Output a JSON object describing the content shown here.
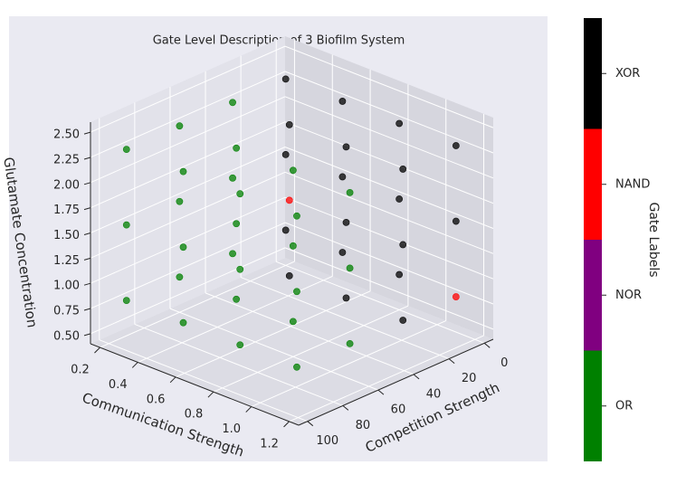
{
  "chart_data": {
    "type": "scatter3d",
    "title": "Gate Level Description of 3 Biofilm System",
    "xlabel": "Communication Strength",
    "ylabel": "Competition Strength",
    "zlabel": "Glutamate Concentration",
    "colorbar_label": "Gate Labels",
    "xlim": [
      0.15,
      1.25
    ],
    "xticks": [
      0.2,
      0.4,
      0.6,
      0.8,
      {
        "value": 1.0,
        "label": "1.0"
      },
      1.2
    ],
    "ylim": [
      -5,
      105
    ],
    "yticks": [
      0,
      20,
      40,
      60,
      80,
      100
    ],
    "zlim": [
      0.4,
      2.6
    ],
    "zticks": [
      {
        "value": 0.5,
        "label": "0.50"
      },
      0.75,
      {
        "value": 1.0,
        "label": "1.00"
      },
      1.25,
      {
        "value": 1.5,
        "label": "1.50"
      },
      1.75,
      {
        "value": 2.0,
        "label": "2.00"
      },
      2.25,
      {
        "value": 2.5,
        "label": "2.50"
      }
    ],
    "grid": true,
    "series": [
      {
        "name": "OR",
        "color": "#008000",
        "x": [
          0.2,
          0.2,
          0.2,
          0.5,
          0.5,
          0.5,
          0.8,
          0.8,
          0.8,
          1.1,
          1.1,
          1.1,
          0.2,
          0.2,
          0.2,
          0.5,
          0.5,
          0.5,
          0.8,
          0.8,
          0.8,
          1.1,
          1.1,
          1.1,
          0.2,
          0.2,
          0.2
        ],
        "y": [
          90,
          90,
          90,
          90,
          90,
          90,
          90,
          90,
          90,
          90,
          90,
          90,
          60,
          60,
          60,
          60,
          60,
          60,
          60,
          60,
          60,
          60,
          60,
          60,
          30,
          30,
          30
        ],
        "z": [
          0.75,
          1.5,
          2.25,
          0.75,
          1.5,
          2.25,
          0.75,
          1.5,
          2.25,
          0.75,
          1.5,
          2.25,
          0.75,
          1.5,
          2.25,
          0.75,
          1.5,
          2.25,
          0.75,
          1.5,
          2.25,
          0.75,
          1.5,
          2.25,
          0.75,
          1.5,
          2.25
        ]
      },
      {
        "name": "NOR",
        "color": "#800080",
        "x": [],
        "y": [],
        "z": []
      },
      {
        "name": "NAND",
        "color": "#ff0000",
        "x": [
          0.5,
          1.1
        ],
        "y": [
          30,
          0
        ],
        "z": [
          1.5,
          0.75
        ]
      },
      {
        "name": "XOR",
        "color": "#000000",
        "x": [
          0.2,
          0.2,
          0.2,
          0.5,
          0.5,
          0.5,
          0.8,
          0.8,
          0.8,
          1.1,
          1.1,
          0.5,
          0.5,
          0.8,
          0.8,
          0.8,
          1.1,
          1.1,
          1.1
        ],
        "y": [
          0,
          0,
          0,
          0,
          0,
          0,
          0,
          0,
          0,
          0,
          0,
          30,
          30,
          30,
          30,
          30,
          30,
          30,
          30
        ],
        "z": [
          0.75,
          1.5,
          2.25,
          0.75,
          1.5,
          2.25,
          0.75,
          1.5,
          2.25,
          1.5,
          2.25,
          0.75,
          2.25,
          0.75,
          1.5,
          2.25,
          0.75,
          1.5,
          2.25
        ]
      }
    ]
  }
}
